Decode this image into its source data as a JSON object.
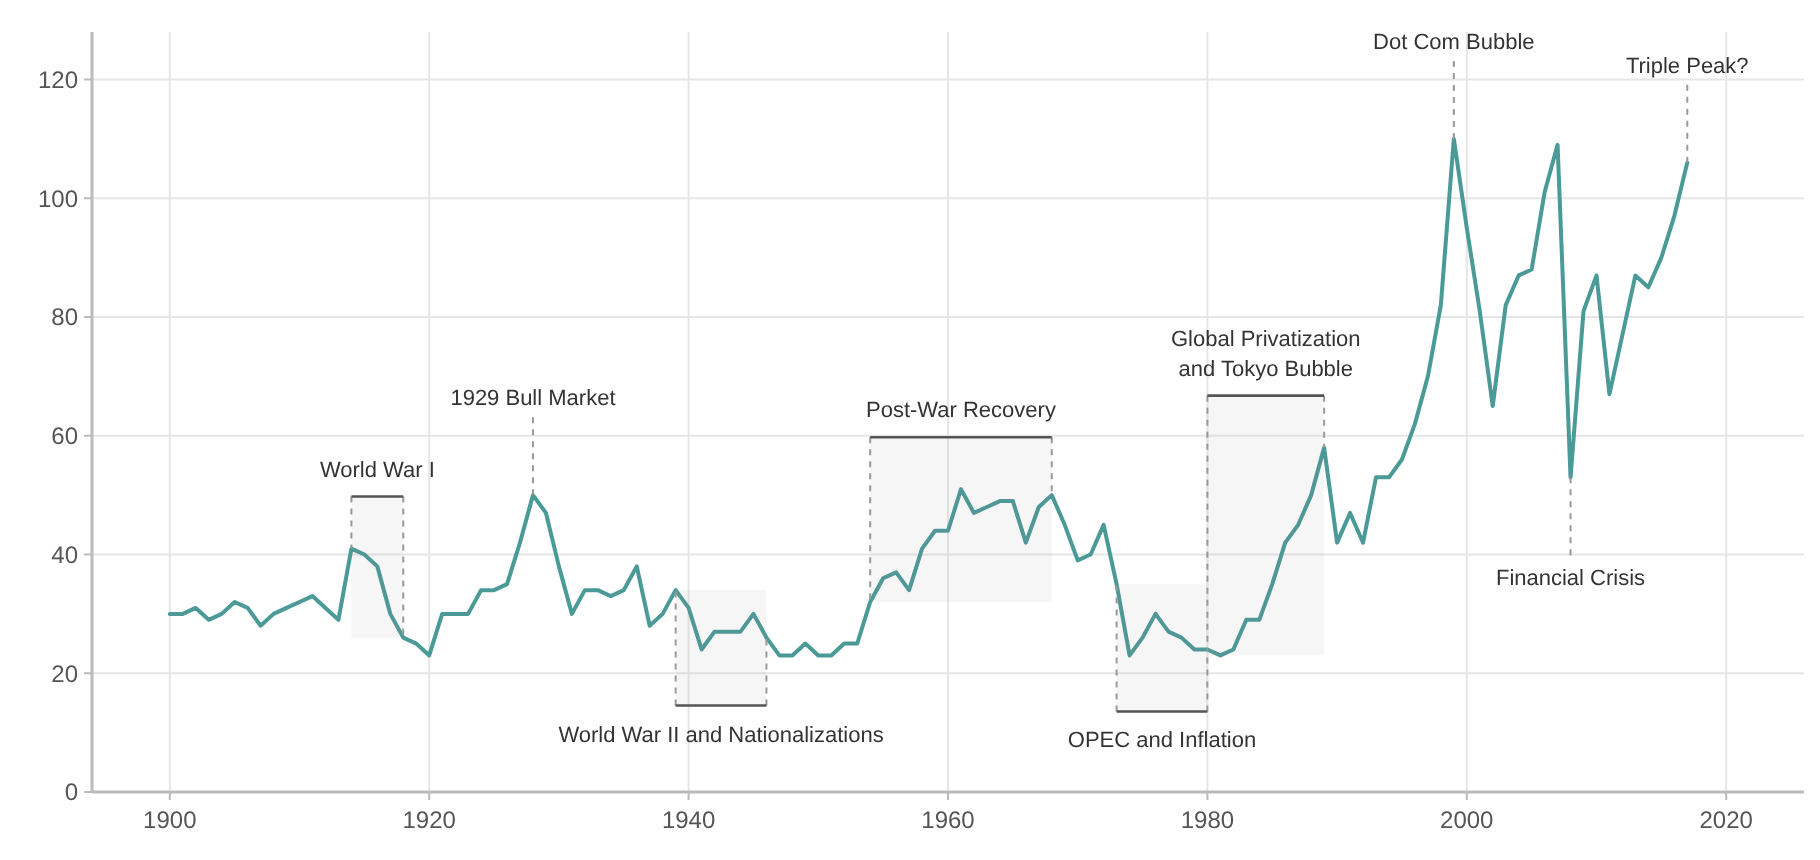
{
  "chart_data": {
    "type": "line",
    "x": [
      1900,
      1901,
      1902,
      1903,
      1904,
      1905,
      1906,
      1907,
      1908,
      1909,
      1910,
      1911,
      1912,
      1913,
      1914,
      1915,
      1916,
      1917,
      1918,
      1919,
      1920,
      1921,
      1922,
      1923,
      1924,
      1925,
      1926,
      1927,
      1928,
      1929,
      1930,
      1931,
      1932,
      1933,
      1934,
      1935,
      1936,
      1937,
      1938,
      1939,
      1940,
      1941,
      1942,
      1943,
      1944,
      1945,
      1946,
      1947,
      1948,
      1949,
      1950,
      1951,
      1952,
      1953,
      1954,
      1955,
      1956,
      1957,
      1958,
      1959,
      1960,
      1961,
      1962,
      1963,
      1964,
      1965,
      1966,
      1967,
      1968,
      1969,
      1970,
      1971,
      1972,
      1973,
      1974,
      1975,
      1976,
      1977,
      1978,
      1979,
      1980,
      1981,
      1982,
      1983,
      1984,
      1985,
      1986,
      1987,
      1988,
      1989,
      1990,
      1991,
      1992,
      1993,
      1994,
      1995,
      1996,
      1997,
      1998,
      1999,
      2000,
      2001,
      2002,
      2003,
      2004,
      2005,
      2006,
      2007,
      2008,
      2009,
      2010,
      2011,
      2012,
      2013,
      2014,
      2015,
      2016,
      2017
    ],
    "series": [
      {
        "color": "#4a9a98",
        "values": [
          30,
          30,
          31,
          29,
          30,
          32,
          31,
          28,
          30,
          31,
          32,
          33,
          31,
          29,
          41,
          40,
          38,
          30,
          26,
          25,
          23,
          30,
          30,
          30,
          34,
          34,
          35,
          42,
          50,
          47,
          38,
          30,
          34,
          34,
          33,
          34,
          38,
          28,
          30,
          34,
          31,
          24,
          27,
          27,
          27,
          30,
          26,
          23,
          23,
          25,
          23,
          23,
          25,
          25,
          32,
          36,
          37,
          34,
          41,
          44,
          44,
          51,
          47,
          48,
          49,
          49,
          42,
          48,
          50,
          45,
          39,
          40,
          45,
          35,
          23,
          26,
          30,
          27,
          26,
          24,
          24,
          23,
          24,
          29,
          29,
          35,
          42,
          45,
          50,
          58,
          42,
          47,
          42,
          53,
          53,
          56,
          62,
          70,
          82,
          110,
          95,
          81,
          65,
          82,
          87,
          88,
          101,
          109,
          53,
          81,
          87,
          67,
          77,
          87,
          85,
          90,
          97,
          106
        ]
      }
    ],
    "xlim": [
      1894,
      2026
    ],
    "ylim": [
      0,
      128
    ],
    "xticks": [
      1900,
      1920,
      1940,
      1960,
      1980,
      2000,
      2020
    ],
    "yticks": [
      0,
      20,
      40,
      60,
      80,
      100,
      120
    ],
    "grid": true,
    "bands": [
      {
        "axis": "x",
        "from": 1914,
        "to": 1918,
        "label": "World War I"
      },
      {
        "axis": "x",
        "from": 1939,
        "to": 1946,
        "label": "World War II and Nationalizations"
      },
      {
        "axis": "x",
        "from": 1954,
        "to": 1968,
        "label": "Post-War Recovery"
      },
      {
        "axis": "x",
        "from": 1973,
        "to": 1980,
        "label": "OPEC and Inflation"
      },
      {
        "axis": "x",
        "from": 1980,
        "to": 1989,
        "label": "Global Privatization\nand Tokyo Bubble"
      }
    ],
    "annotations": [
      {
        "text": "1929 Bull Market",
        "x": 1928,
        "y": 50
      },
      {
        "text": "Dot Com Bubble",
        "x": 1999,
        "y": 110
      },
      {
        "text": "Financial Crisis",
        "x": 2008,
        "y": 53
      },
      {
        "text": "Triple Peak?",
        "x": 2017,
        "y": 106
      }
    ]
  }
}
